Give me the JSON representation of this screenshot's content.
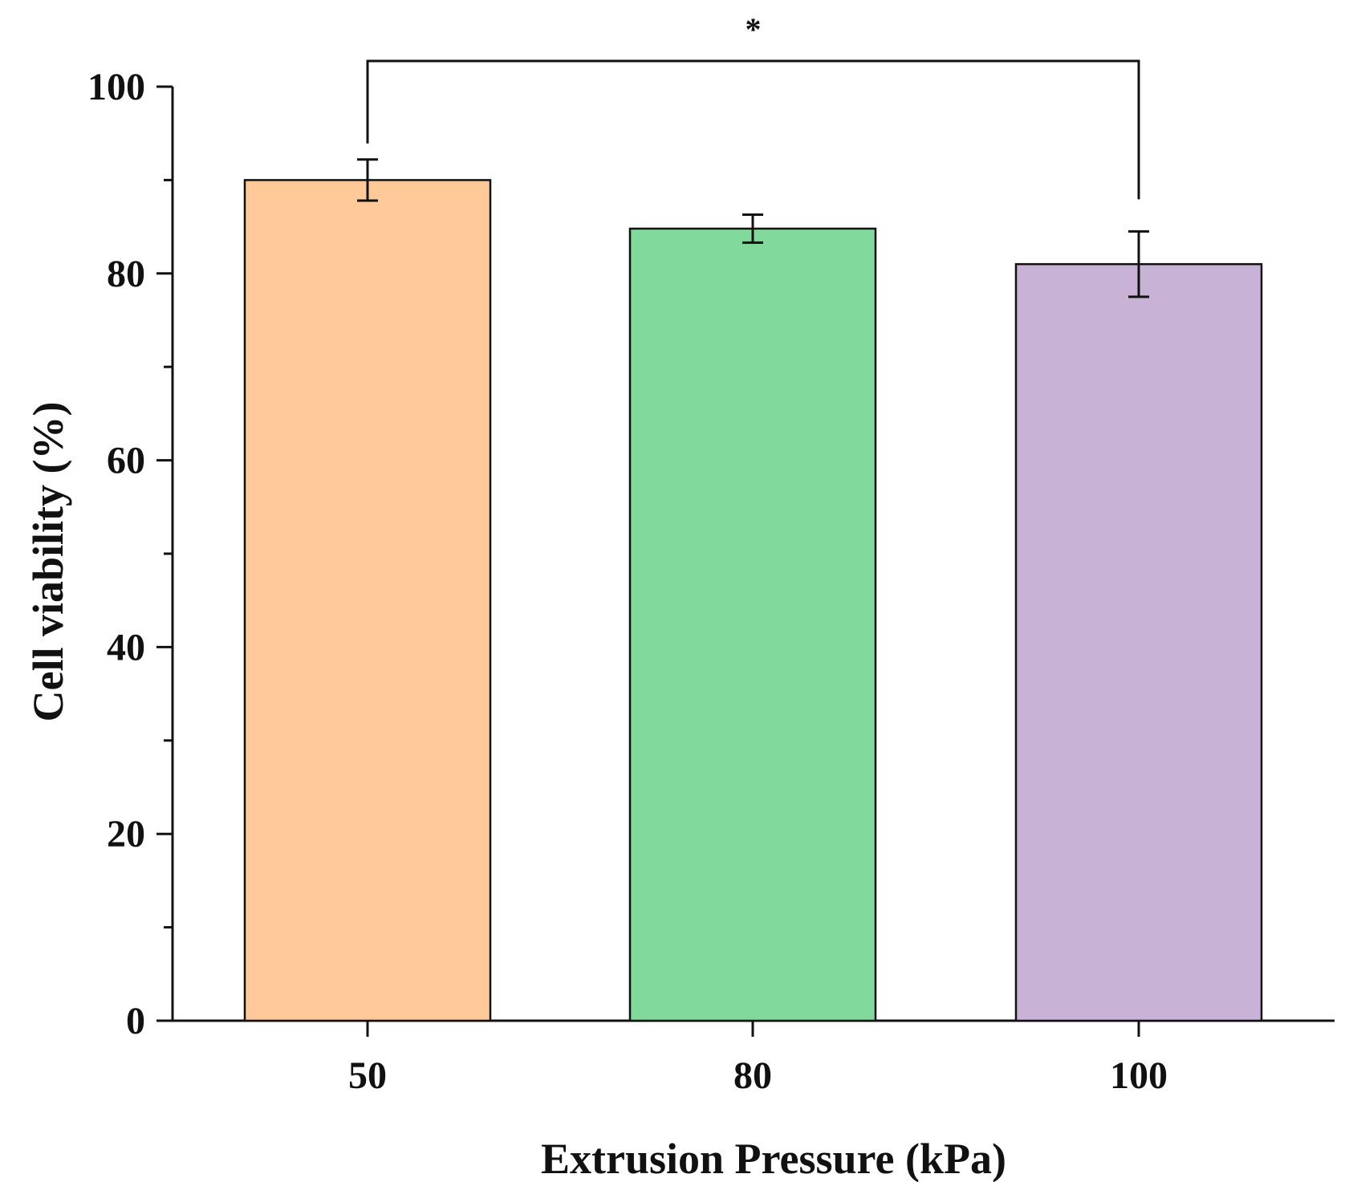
{
  "chart_data": {
    "type": "bar",
    "title": "",
    "xlabel": "Extrusion Pressure (kPa)",
    "ylabel": "Cell viability (%)",
    "ylim": [
      0,
      100
    ],
    "yticks": [
      "0",
      "20",
      "40",
      "60",
      "80",
      "100"
    ],
    "categories": [
      "50",
      "80",
      "100"
    ],
    "values": [
      90.0,
      84.8,
      81.0
    ],
    "errors": [
      2.2,
      1.5,
      3.5
    ],
    "colors": [
      "#FFC999",
      "#82D99C",
      "#C8B3D7"
    ],
    "significance": {
      "from": "50",
      "to": "100",
      "label": "*"
    }
  }
}
